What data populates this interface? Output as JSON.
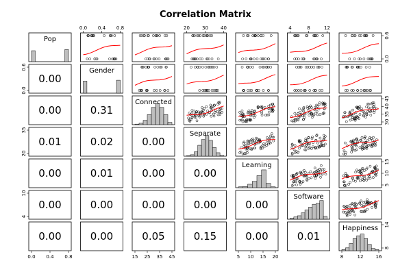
{
  "chart_data": {
    "type": "scatter-matrix",
    "title": "Correlation Matrix",
    "variables": [
      "Pop",
      "Gender",
      "Connected",
      "Separate",
      "Learning",
      "Software",
      "Happiness"
    ],
    "lower_panel": "p-values of correlation",
    "upper_panel": "scatterplots with red smoothed fit line",
    "diagonal_panel": "histograms",
    "p_values": [
      {
        "row": "Gender",
        "col": "Pop",
        "value": "0.00"
      },
      {
        "row": "Connected",
        "col": "Pop",
        "value": "0.00"
      },
      {
        "row": "Connected",
        "col": "Gender",
        "value": "0.31"
      },
      {
        "row": "Separate",
        "col": "Pop",
        "value": "0.01"
      },
      {
        "row": "Separate",
        "col": "Gender",
        "value": "0.02"
      },
      {
        "row": "Separate",
        "col": "Connected",
        "value": "0.00"
      },
      {
        "row": "Learning",
        "col": "Pop",
        "value": "0.00"
      },
      {
        "row": "Learning",
        "col": "Gender",
        "value": "0.01"
      },
      {
        "row": "Learning",
        "col": "Connected",
        "value": "0.00"
      },
      {
        "row": "Learning",
        "col": "Separate",
        "value": "0.00"
      },
      {
        "row": "Software",
        "col": "Pop",
        "value": "0.00"
      },
      {
        "row": "Software",
        "col": "Gender",
        "value": "0.00"
      },
      {
        "row": "Software",
        "col": "Connected",
        "value": "0.00"
      },
      {
        "row": "Software",
        "col": "Separate",
        "value": "0.00"
      },
      {
        "row": "Software",
        "col": "Learning",
        "value": "0.00"
      },
      {
        "row": "Happiness",
        "col": "Pop",
        "value": "0.00"
      },
      {
        "row": "Happiness",
        "col": "Gender",
        "value": "0.00"
      },
      {
        "row": "Happiness",
        "col": "Connected",
        "value": "0.05"
      },
      {
        "row": "Happiness",
        "col": "Separate",
        "value": "0.15"
      },
      {
        "row": "Happiness",
        "col": "Learning",
        "value": "0.00"
      },
      {
        "row": "Happiness",
        "col": "Software",
        "value": "0.01"
      }
    ],
    "histograms": [
      {
        "variable": "Pop",
        "counts": [
          0.38,
          0,
          0,
          0,
          0,
          0,
          0,
          0,
          0,
          0.42
        ]
      },
      {
        "variable": "Gender",
        "counts": [
          0.42,
          0,
          0,
          0,
          0,
          0,
          0,
          0,
          0,
          0.45
        ]
      },
      {
        "variable": "Connected",
        "counts": [
          0.02,
          0.05,
          0.15,
          0.35,
          0.6,
          0.72,
          0.6,
          0.35,
          0.08
        ]
      },
      {
        "variable": "Separate",
        "counts": [
          0.02,
          0.05,
          0.15,
          0.38,
          0.58,
          0.72,
          0.55,
          0.3,
          0.12,
          0.03
        ]
      },
      {
        "variable": "Learning",
        "counts": [
          0.03,
          0.04,
          0.12,
          0.22,
          0.42,
          0.62,
          0.15,
          0.03
        ]
      },
      {
        "variable": "Software",
        "counts": [
          0.04,
          0.08,
          0.12,
          0.22,
          0.32,
          0.42,
          0.52,
          0.55,
          0.65,
          0.1
        ]
      },
      {
        "variable": "Happiness",
        "counts": [
          0.04,
          0.1,
          0.25,
          0.42,
          0.52,
          0.58,
          0.42,
          0.22,
          0.08,
          0.04
        ]
      }
    ],
    "axes": {
      "top": [
        {
          "col": "Gender",
          "ticks": [
            "0.0",
            "0.4",
            "0.8"
          ]
        },
        {
          "col": "Separate",
          "ticks": [
            "20",
            "30",
            "40"
          ]
        },
        {
          "col": "Software",
          "ticks": [
            "4",
            "8",
            "12"
          ]
        }
      ],
      "bottom": [
        {
          "col": "Pop",
          "ticks": [
            "0.0",
            "0.4",
            "0.8"
          ]
        },
        {
          "col": "Connected",
          "ticks": [
            "15",
            "25",
            "35",
            "45"
          ]
        },
        {
          "col": "Learning",
          "ticks": [
            "5",
            "10",
            "15",
            "20"
          ]
        },
        {
          "col": "Happiness",
          "ticks": [
            "8",
            "12",
            "16"
          ]
        }
      ],
      "left": [
        {
          "row": "Gender",
          "ticks": [
            "0.0",
            "0.6"
          ]
        },
        {
          "row": "Separate",
          "ticks": [
            "20",
            "35"
          ]
        },
        {
          "row": "Software",
          "ticks": [
            "4",
            "10"
          ]
        }
      ],
      "right": [
        {
          "row": "Pop",
          "ticks": [
            "0.0",
            "0.6"
          ]
        },
        {
          "row": "Connected",
          "ticks": [
            "30",
            "35",
            "40",
            "45"
          ]
        },
        {
          "row": "Learning",
          "ticks": [
            "5",
            "10",
            "15"
          ]
        },
        {
          "row": "Happiness",
          "ticks": [
            "8",
            "14"
          ]
        }
      ]
    },
    "colors": {
      "fit_line": "#ff0000",
      "histogram_fill": "#bebebe",
      "points": "#000000"
    }
  }
}
